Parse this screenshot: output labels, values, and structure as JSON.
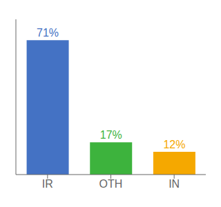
{
  "chart_data": {
    "type": "bar",
    "categories": [
      "IR",
      "OTH",
      "IN"
    ],
    "values": [
      71,
      17,
      12
    ],
    "value_labels": [
      "71%",
      "17%",
      "12%"
    ],
    "colors": [
      "#4472c4",
      "#3db33d",
      "#f5a800"
    ],
    "ylim": [
      0,
      82
    ],
    "grid": false,
    "data_labels": true,
    "tick_labels": "x"
  }
}
